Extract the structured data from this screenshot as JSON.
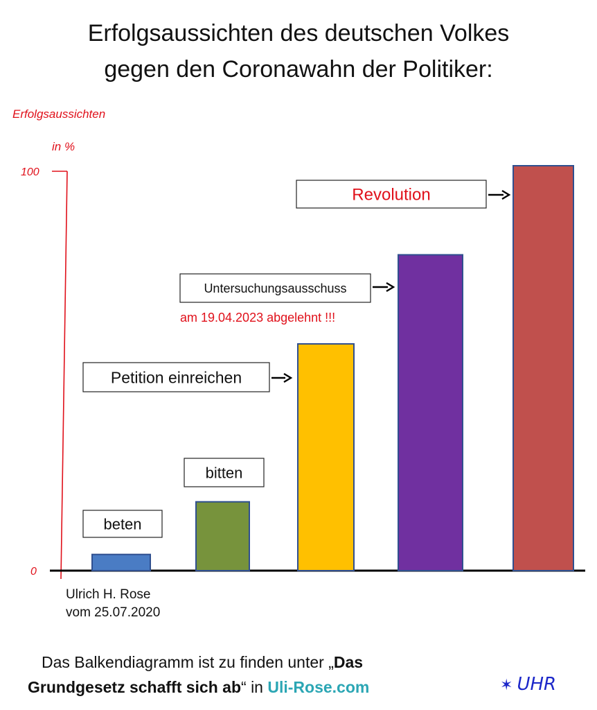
{
  "title_line1": "Erfolgsaussichten des deutschen Volkes",
  "title_line2": "gegen den Coronawahn der Politiker:",
  "chart_data": {
    "type": "bar",
    "ylabel_line1": "Erfolgsaussichten",
    "ylabel_line2": "in %",
    "ylim": [
      0,
      100
    ],
    "yticks": [
      "0",
      "100"
    ],
    "grid": false,
    "categories": [
      "beten",
      "bitten",
      "Petition einreichen",
      "Untersuchungsausschuss",
      "Revolution"
    ],
    "values": [
      4,
      17,
      56,
      78,
      100
    ],
    "colors": [
      "#4a7cc4",
      "#77933c",
      "#ffc000",
      "#7030a0",
      "#c0504d"
    ],
    "label_colors": [
      "#111111",
      "#111111",
      "#111111",
      "#111111",
      "#e0101a"
    ],
    "annotation": "am 19.04.2023 abgelehnt !!!",
    "annotation_color": "#e0101a",
    "axis_color": "#e0101a",
    "author_line1": "Ulrich H. Rose",
    "author_line2": "vom 25.07.2020"
  },
  "footer": {
    "line1_text": "Das Balkendiagramm ist zu finden unter „",
    "line1_bold": "Das",
    "line2_bold": "Grundgesetz schafft sich ab",
    "line2_text": "“ in ",
    "site": "Uli-Rose.com"
  },
  "logo": {
    "star": "✶",
    "text": "UHR"
  }
}
